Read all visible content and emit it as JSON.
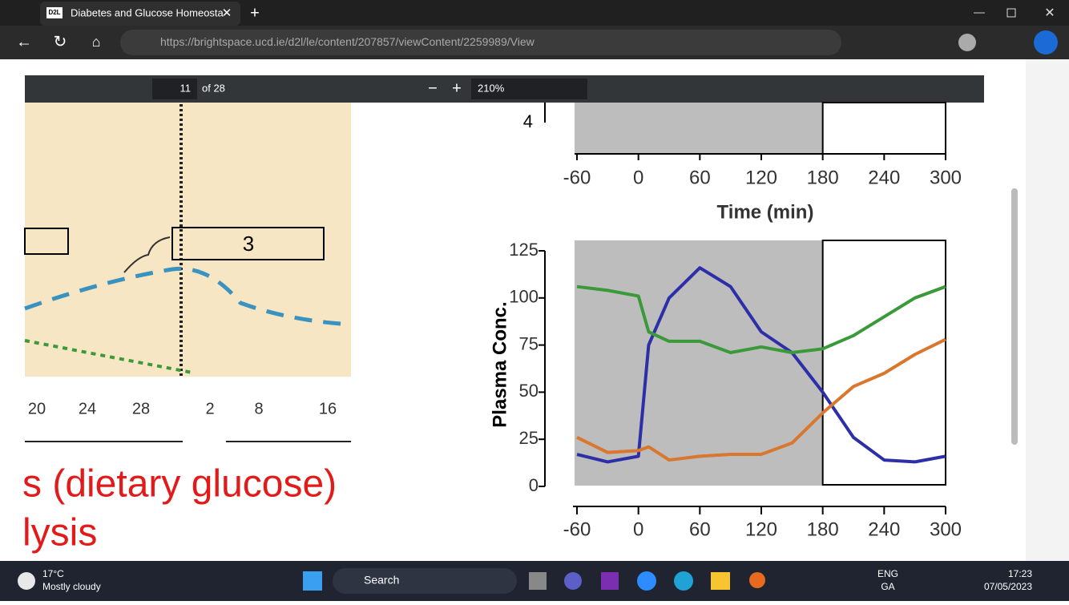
{
  "browser": {
    "tab_icon": "D2L",
    "tab_title": "Diabetes and Glucose Homeosta",
    "url_host": "https://brightspace.ucd.ie",
    "url_path": "/d2l/le/content/207857/viewContent/2259989/View"
  },
  "pdf_toolbar": {
    "page": "11",
    "page_total": "of 28",
    "zoom": "210%"
  },
  "figure_left": {
    "box_label": "3",
    "axis_labels": [
      "20",
      "24",
      "28",
      "2",
      "8",
      "16"
    ],
    "text_lines": [
      "s (dietary glucose)",
      "lysis"
    ]
  },
  "upper_chart": {
    "ytick": 4,
    "xticks": [
      -60,
      0,
      60,
      120,
      180,
      240,
      300
    ],
    "xlabel": "Time (min)"
  },
  "chart_data": {
    "type": "line",
    "ylabel": "Plasma Conc.",
    "x": [
      -60,
      -30,
      0,
      10,
      30,
      60,
      90,
      120,
      150,
      180,
      210,
      240,
      270,
      300
    ],
    "series": [
      {
        "color": "#2d2fa8",
        "values": [
          17,
          13,
          16,
          75,
          100,
          116,
          106,
          82,
          71,
          50,
          26,
          14,
          13,
          16
        ]
      },
      {
        "color": "#3a9a3a",
        "values": [
          106,
          104,
          101,
          82,
          77,
          77,
          71,
          74,
          71,
          73,
          80,
          90,
          100,
          106
        ]
      },
      {
        "color": "#d9772e",
        "values": [
          26,
          18,
          19,
          21,
          14,
          16,
          17,
          17,
          23,
          39,
          53,
          60,
          70,
          78
        ]
      }
    ],
    "xlim": [
      -60,
      300
    ],
    "ylim": [
      0,
      125
    ],
    "xticks": [
      -60,
      0,
      60,
      120,
      180,
      240,
      300
    ],
    "yticks": [
      0,
      25,
      50,
      75,
      100,
      125
    ],
    "shaded_x": [
      -60,
      180
    ]
  },
  "taskbar": {
    "temp": "17°C",
    "weather": "Mostly cloudy",
    "search": "Search",
    "lang": "ENG",
    "region": "GA",
    "time": "17:23",
    "date": "07/05/2023"
  }
}
